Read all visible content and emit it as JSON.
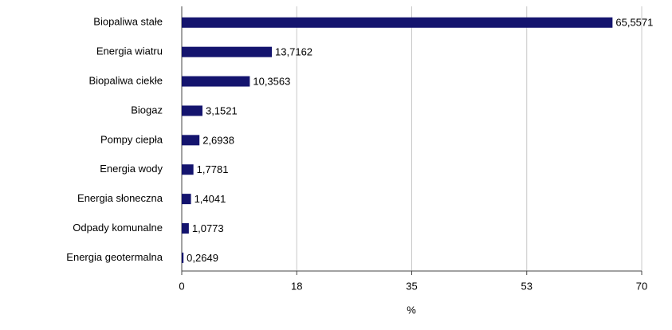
{
  "chart_data": {
    "type": "bar",
    "orientation": "horizontal",
    "categories": [
      "Biopaliwa stałe",
      "Energia wiatru",
      "Biopaliwa ciekłe",
      "Biogaz",
      "Pompy ciepła",
      "Energia wody",
      "Energia słoneczna",
      "Odpady komunalne",
      "Energia geotermalna"
    ],
    "values": [
      65.5571,
      13.7162,
      10.3563,
      3.1521,
      2.6938,
      1.7781,
      1.4041,
      1.0773,
      0.2649
    ],
    "value_labels": [
      "65,5571",
      "13,7162",
      "10,3563",
      "3,1521",
      "2,6938",
      "1,7781",
      "1,4041",
      "1,0773",
      "0,2649"
    ],
    "color": "#14146e",
    "x_label": "%",
    "xlim": [
      0,
      70
    ],
    "xticks": [
      0,
      {
        "value": 17.5,
        "label": "18"
      },
      35,
      {
        "value": 52.5,
        "label": "53"
      },
      70
    ],
    "grid": true
  }
}
